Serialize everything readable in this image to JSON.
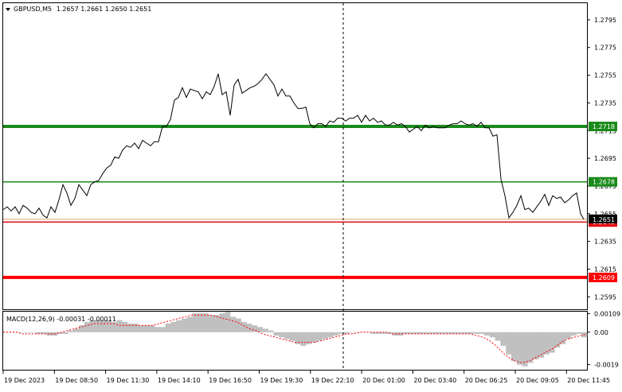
{
  "chart_data": {
    "type": "line",
    "symbol": "GBPUSD,M5",
    "ohlc": "1.2657 1.2661 1.2650 1.2651",
    "price_axis": {
      "ylim": [
        1.2586,
        1.2807
      ],
      "ticks": [
        "1.2795",
        "1.2775",
        "1.2755",
        "1.2735",
        "1.2715",
        "1.2695",
        "1.2675",
        "1.2655",
        "1.2635",
        "1.2615",
        "1.2595"
      ]
    },
    "time_axis": {
      "labels": [
        "19 Dec 2023",
        "19 Dec 08:50",
        "19 Dec 11:30",
        "19 Dec 14:10",
        "19 Dec 16:50",
        "19 Dec 19:30",
        "19 Dec 22:10",
        "20 Dec 01:00",
        "20 Dec 03:40",
        "20 Dec 06:25",
        "20 Dec 09:05",
        "20 Dec 11:45"
      ]
    },
    "levels": [
      {
        "value": 1.2718,
        "label": "1.2718",
        "color": "#1a8a1a",
        "width": 4
      },
      {
        "value": 1.2678,
        "label": "1.2678",
        "color": "#1a8a1a",
        "width": 1.5
      },
      {
        "value": 1.2649,
        "label": "1.2649",
        "color": "#e01010",
        "width": 1.5
      },
      {
        "value": 1.2609,
        "label": "1.2609",
        "color": "#ff0000",
        "width": 4
      }
    ],
    "current_price": {
      "value": 1.2651,
      "label": "1.2651",
      "color": "#e8a27a"
    },
    "series": [
      {
        "x": [
          0,
          5,
          10,
          15,
          20,
          25,
          30,
          35,
          40,
          45,
          50,
          55,
          60,
          65,
          70,
          75,
          80,
          85,
          90,
          95,
          100,
          105,
          110,
          115,
          120,
          125,
          130,
          135,
          140,
          145,
          150,
          155,
          160,
          165,
          170,
          175,
          180,
          185,
          190,
          195,
          200,
          205,
          210,
          215,
          220,
          225,
          230,
          235,
          240,
          245,
          250,
          255,
          260,
          265,
          270,
          275,
          280,
          285,
          290,
          295,
          300,
          305,
          310,
          315,
          320,
          325,
          330,
          335,
          340,
          345,
          350,
          355,
          360,
          365,
          370,
          375,
          380,
          385,
          390,
          395,
          400,
          405,
          410,
          415,
          420,
          425,
          430,
          435,
          440,
          445,
          450,
          455,
          460,
          465,
          470,
          475,
          480,
          485,
          490,
          495,
          500,
          505,
          510,
          515,
          520,
          525,
          530,
          535,
          540,
          545,
          550,
          555,
          560,
          565,
          570,
          575,
          580,
          585,
          590,
          595,
          600,
          605,
          610,
          615,
          620,
          625,
          630,
          635,
          640,
          645,
          650,
          655,
          660,
          665,
          670,
          675,
          680,
          685,
          690,
          695,
          700,
          705,
          710,
          715,
          720,
          725,
          729
        ],
        "y": [
          1.2658,
          1.266,
          1.2657,
          1.266,
          1.2655,
          1.2661,
          1.2659,
          1.2656,
          1.2655,
          1.2659,
          1.2654,
          1.2652,
          1.266,
          1.2656,
          1.2665,
          1.2676,
          1.267,
          1.2661,
          1.2666,
          1.2676,
          1.2672,
          1.2668,
          1.2676,
          1.2678,
          1.2679,
          1.2684,
          1.2688,
          1.269,
          1.2696,
          1.2695,
          1.2701,
          1.2704,
          1.2703,
          1.2706,
          1.2702,
          1.2708,
          1.2706,
          1.2704,
          1.2707,
          1.2707,
          1.2718,
          1.2718,
          1.2723,
          1.2737,
          1.2739,
          1.2746,
          1.2739,
          1.2745,
          1.2744,
          1.2743,
          1.2738,
          1.2743,
          1.2741,
          1.2747,
          1.2756,
          1.2741,
          1.2743,
          1.2726,
          1.2748,
          1.2752,
          1.2742,
          1.2744,
          1.2746,
          1.2747,
          1.2749,
          1.2752,
          1.2756,
          1.2752,
          1.2748,
          1.274,
          1.2745,
          1.274,
          1.274,
          1.2735,
          1.2731,
          1.2731,
          1.2732,
          1.272,
          1.2717,
          1.272,
          1.272,
          1.2718,
          1.2722,
          1.2721,
          1.2724,
          1.2724,
          1.2722,
          1.2724,
          1.2724,
          1.2726,
          1.2721,
          1.2726,
          1.2722,
          1.2724,
          1.2721,
          1.2722,
          1.2719,
          1.2719,
          1.2721,
          1.2719,
          1.272,
          1.2718,
          1.2714,
          1.2716,
          1.2718,
          1.2715,
          1.2719,
          1.2717,
          1.2718,
          1.2717,
          1.2717,
          1.2717,
          1.2719,
          1.272,
          1.272,
          1.2722,
          1.272,
          1.2719,
          1.272,
          1.2718,
          1.2721,
          1.2717,
          1.2717,
          1.2711,
          1.2712,
          1.268,
          1.2668,
          1.2652,
          1.2656,
          1.2661,
          1.2668,
          1.2658,
          1.2659,
          1.2656,
          1.266,
          1.2664,
          1.2669,
          1.2661,
          1.2668,
          1.2666,
          1.2667,
          1.2663,
          1.2665,
          1.2668,
          1.267,
          1.2655,
          1.2651
        ]
      }
    ],
    "macd": {
      "label": "MACD(12,26,9) -0.00031 -0.00011",
      "ylim": [
        -0.0022,
        0.0012
      ],
      "ticks": [
        "0.00109",
        "0.00",
        "-0.0019"
      ],
      "histogram": [
        0.0,
        0.0,
        0.0,
        0.0,
        0.0,
        0.0,
        -0.0001,
        -0.0001,
        -0.0002,
        -0.0002,
        -0.0001,
        -0.0001,
        0.0001,
        0.0002,
        0.0004,
        0.0006,
        0.0007,
        0.0007,
        0.0007,
        0.0007,
        0.0006,
        0.0007,
        0.0006,
        0.0005,
        0.0005,
        0.0004,
        0.0004,
        0.0004,
        0.0003,
        0.0003,
        0.0005,
        0.0006,
        0.0007,
        0.0008,
        0.0009,
        0.0011,
        0.0011,
        0.0011,
        0.001,
        0.001,
        0.0011,
        0.0012,
        0.0009,
        0.0008,
        0.0006,
        0.0005,
        0.0004,
        0.0003,
        0.0002,
        0.0001,
        -0.0002,
        -0.0003,
        -0.0004,
        -0.0005,
        -0.0007,
        -0.0008,
        -0.0007,
        -0.0006,
        -0.0005,
        -0.0004,
        -0.0003,
        -0.0002,
        -0.0001,
        -0.0001,
        0.0,
        0.0,
        0.0,
        0.0,
        -0.0001,
        -0.0001,
        -0.0001,
        -0.0001,
        -0.0002,
        -0.0002,
        -0.0001,
        -0.0001,
        -0.0001,
        -0.0001,
        -0.0001,
        -0.0001,
        -0.0001,
        -0.0001,
        -0.0001,
        -0.0001,
        -0.0001,
        -0.0001,
        -0.0001,
        -0.0001,
        -0.0001,
        -0.0002,
        -0.0003,
        -0.0005,
        -0.0008,
        -0.0013,
        -0.0017,
        -0.0019,
        -0.002,
        -0.0018,
        -0.0016,
        -0.0015,
        -0.0013,
        -0.0012,
        -0.0009,
        -0.0007,
        -0.0004,
        -0.0002,
        -0.0001,
        -0.0003
      ],
      "signal": [
        0.0,
        0.0,
        0.0,
        -0.0001,
        -0.0001,
        -0.0001,
        -0.0001,
        -0.0001,
        -0.0001,
        0.0,
        0.0001,
        0.0002,
        0.0003,
        0.0004,
        0.0005,
        0.0005,
        0.0005,
        0.0005,
        0.0004,
        0.0004,
        0.0004,
        0.0004,
        0.0004,
        0.0004,
        0.0005,
        0.0006,
        0.0007,
        0.0008,
        0.0009,
        0.001,
        0.001,
        0.001,
        0.001,
        0.0009,
        0.0008,
        0.0007,
        0.0006,
        0.0004,
        0.0002,
        0.0001,
        -0.0001,
        -0.0002,
        -0.0003,
        -0.0004,
        -0.0005,
        -0.0006,
        -0.0006,
        -0.0006,
        -0.0006,
        -0.0005,
        -0.0004,
        -0.0003,
        -0.0002,
        -0.0001,
        -0.0001,
        0.0,
        0.0,
        0.0,
        0.0,
        0.0,
        -0.0001,
        -0.0001,
        -0.0001,
        -0.0001,
        -0.0001,
        -0.0001,
        -0.0001,
        -0.0001,
        -0.0001,
        -0.0001,
        -0.0001,
        -0.0001,
        -0.0001,
        -0.0002,
        -0.0003,
        -0.0005,
        -0.0008,
        -0.0012,
        -0.0015,
        -0.0017,
        -0.0018,
        -0.0017,
        -0.0015,
        -0.0013,
        -0.0011,
        -0.0009,
        -0.0006,
        -0.0004,
        -0.0003,
        -0.0002,
        -0.0001
      ]
    },
    "grid": false,
    "crosshair": true
  },
  "colors": {
    "price_line": "#000000",
    "histogram": "#c0c0c0",
    "signal": "#ff0000",
    "axis": "#000000",
    "crosshair": "#000000"
  }
}
